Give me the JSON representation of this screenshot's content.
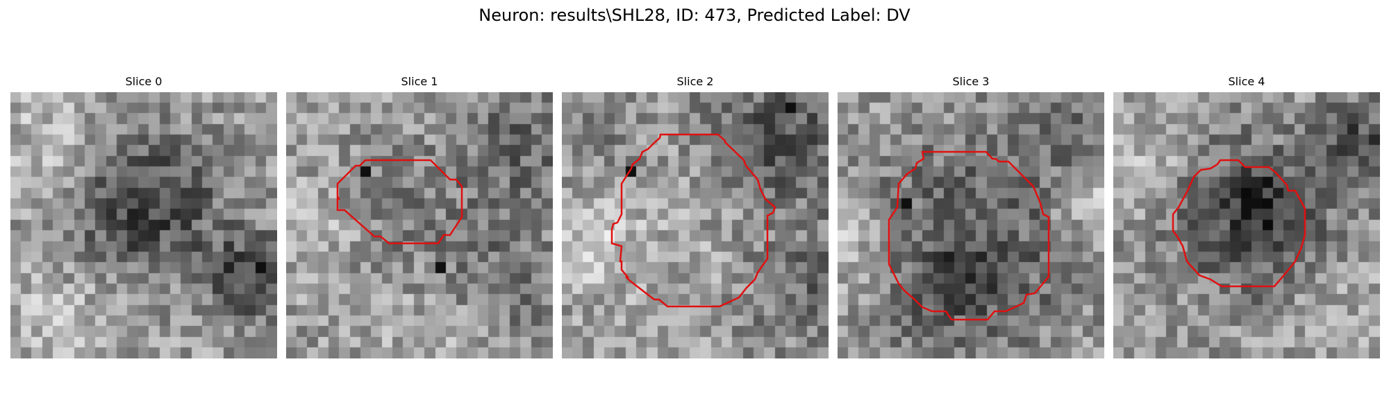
{
  "figure": {
    "title": "Neuron: results\\SHL28, ID: 473, Predicted Label: DV"
  },
  "colors": {
    "background": "#ffffff",
    "contour": "#e01010",
    "colormap": "grayscale"
  },
  "grid_size": 25,
  "panels": [
    {
      "title": "Slice 0",
      "has_contour": false,
      "dark_blobs": [
        [
          13.5,
          9.5,
          4.5,
          0.32
        ],
        [
          22,
          17,
          3,
          0.38
        ],
        [
          9,
          12,
          3.5,
          0.15
        ]
      ],
      "light_blobs": [
        [
          3,
          4,
          4,
          0.12
        ],
        [
          4,
          21,
          3.5,
          0.14
        ]
      ],
      "dark_pixels": [
        [
          23,
          16
        ]
      ]
    },
    {
      "title": "Slice 1",
      "has_contour": true,
      "dark_blobs": [
        [
          12.5,
          12,
          6,
          0.12
        ],
        [
          22,
          4,
          4,
          0.2
        ],
        [
          21,
          18,
          4,
          0.18
        ]
      ],
      "light_blobs": [
        [
          2,
          12,
          3,
          0.15
        ],
        [
          13,
          22,
          4,
          0.12
        ]
      ],
      "dark_pixels": [
        [
          14,
          16
        ],
        [
          7,
          7
        ]
      ]
    },
    {
      "title": "Slice 2",
      "has_contour": true,
      "dark_blobs": [
        [
          20,
          4,
          5,
          0.3
        ],
        [
          22,
          18,
          4,
          0.2
        ],
        [
          3,
          2,
          3,
          0.15
        ]
      ],
      "light_blobs": [
        [
          2,
          14,
          3,
          0.2
        ],
        [
          12,
          12,
          6,
          0.06
        ]
      ],
      "dark_pixels": [
        [
          21,
          1
        ],
        [
          6,
          7
        ]
      ]
    },
    {
      "title": "Slice 3",
      "has_contour": true,
      "dark_blobs": [
        [
          12,
          14,
          7,
          0.3
        ],
        [
          21,
          3,
          3.5,
          0.15
        ],
        [
          10,
          18,
          3,
          0.1
        ]
      ],
      "light_blobs": [
        [
          1,
          14,
          3,
          0.2
        ],
        [
          23,
          10,
          2.5,
          0.2
        ]
      ],
      "dark_pixels": [
        [
          6,
          10
        ]
      ]
    },
    {
      "title": "Slice 4",
      "has_contour": true,
      "dark_blobs": [
        [
          13,
          11.5,
          5.5,
          0.35
        ],
        [
          23,
          4,
          3,
          0.3
        ],
        [
          13,
          10,
          2,
          0.2
        ]
      ],
      "light_blobs": [
        [
          2,
          6,
          3,
          0.15
        ],
        [
          19,
          20,
          4,
          0.1
        ]
      ],
      "dark_pixels": [
        [
          12,
          10
        ],
        [
          13,
          10
        ],
        [
          14,
          8
        ]
      ]
    }
  ]
}
